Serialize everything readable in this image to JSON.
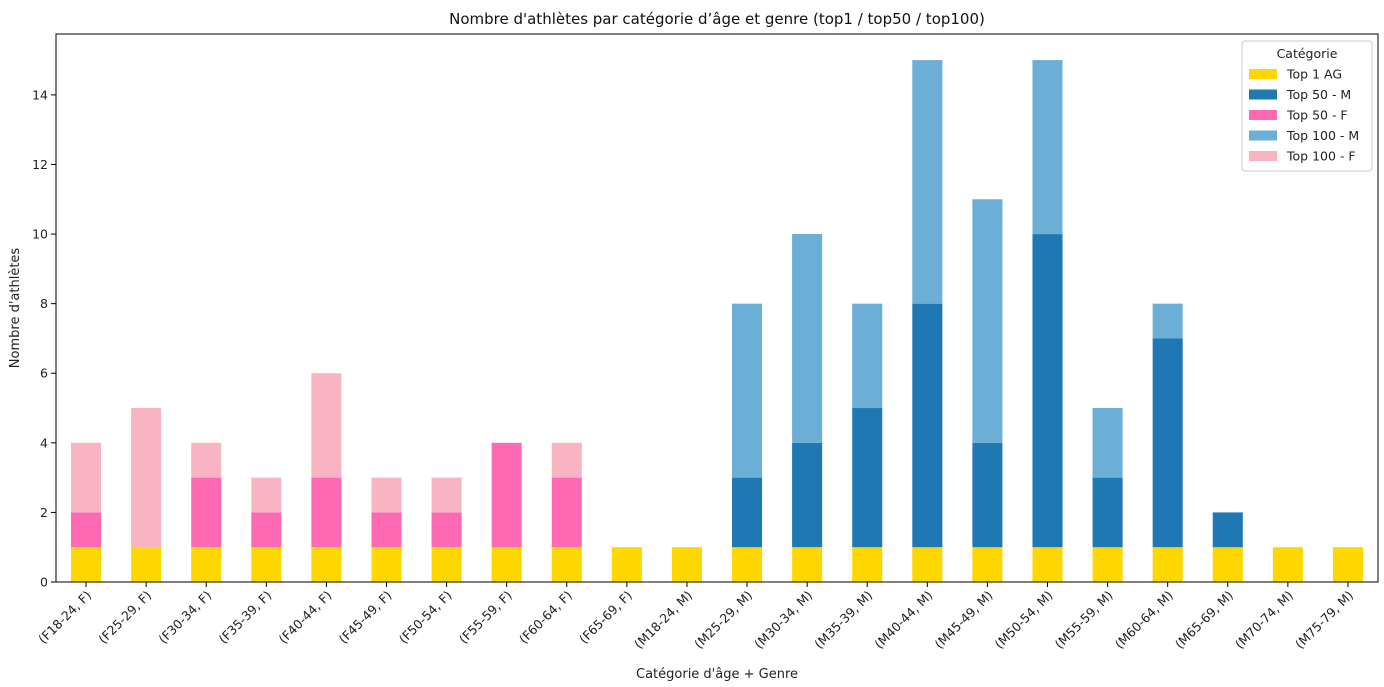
{
  "chart_data": {
    "type": "bar",
    "stacked": true,
    "title": "Nombre d'athlètes par catégorie d’âge et genre (top1 / top50 / top100)",
    "xlabel": "Catégorie d'âge + Genre",
    "ylabel": "Nombre d'athlètes",
    "ylim": [
      0,
      15.75
    ],
    "yticks": [
      "0",
      "2",
      "4",
      "6",
      "8",
      "10",
      "12",
      "14"
    ],
    "legend_title": "Catégorie",
    "legend_position": "top-right",
    "categories": [
      "(F18-24, F)",
      "(F25-29, F)",
      "(F30-34, F)",
      "(F35-39, F)",
      "(F40-44, F)",
      "(F45-49, F)",
      "(F50-54, F)",
      "(F55-59, F)",
      "(F60-64, F)",
      "(F65-69, F)",
      "(M18-24, M)",
      "(M25-29, M)",
      "(M30-34, M)",
      "(M35-39, M)",
      "(M40-44, M)",
      "(M45-49, M)",
      "(M50-54, M)",
      "(M55-59, M)",
      "(M60-64, M)",
      "(M65-69, M)",
      "(M70-74, M)",
      "(M75-79, M)"
    ],
    "series": [
      {
        "name": "Top 1 AG",
        "color": "#ffd700",
        "values": [
          1,
          1,
          1,
          1,
          1,
          1,
          1,
          1,
          1,
          1,
          1,
          1,
          1,
          1,
          1,
          1,
          1,
          1,
          1,
          1,
          1,
          1
        ]
      },
      {
        "name": "Top 50 - M",
        "color": "#1f77b4",
        "values": [
          0,
          0,
          0,
          0,
          0,
          0,
          0,
          0,
          0,
          0,
          0,
          2,
          3,
          4,
          7,
          3,
          9,
          2,
          6,
          1,
          0,
          0
        ]
      },
      {
        "name": "Top 50 - F",
        "color": "#ff69b4",
        "values": [
          1,
          0,
          2,
          1,
          2,
          1,
          1,
          3,
          2,
          0,
          0,
          0,
          0,
          0,
          0,
          0,
          0,
          0,
          0,
          0,
          0,
          0
        ]
      },
      {
        "name": "Top 100 - M",
        "color": "#6baed6",
        "values": [
          0,
          0,
          0,
          0,
          0,
          0,
          0,
          0,
          0,
          0,
          0,
          5,
          6,
          3,
          7,
          7,
          5,
          2,
          1,
          0,
          0,
          0
        ]
      },
      {
        "name": "Top 100 - F",
        "color": "#f9b4c4",
        "values": [
          2,
          4,
          1,
          1,
          3,
          1,
          1,
          0,
          1,
          0,
          0,
          0,
          0,
          0,
          0,
          0,
          0,
          0,
          0,
          0,
          0,
          0
        ]
      }
    ]
  }
}
